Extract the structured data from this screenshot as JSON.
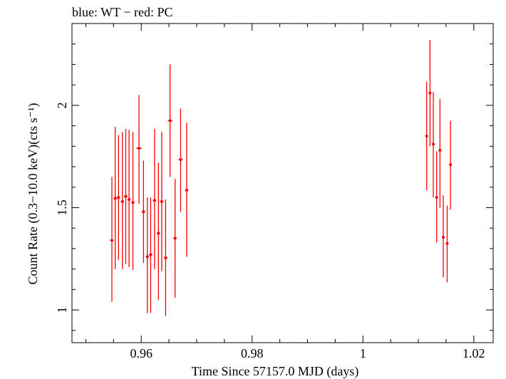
{
  "chart_data": {
    "type": "scatter",
    "title": "blue: WT − red: PC",
    "xlabel": "Time Since 57157.0 MJD (days)",
    "ylabel": "Count Rate (0.3−10.0 keV)(cts s⁻¹)",
    "xlim": [
      0.9475,
      1.0235
    ],
    "ylim": [
      0.84,
      2.4
    ],
    "x_ticks": [
      {
        "value": 0.96,
        "label": "0.96"
      },
      {
        "value": 0.98,
        "label": "0.98"
      },
      {
        "value": 1.0,
        "label": "1"
      },
      {
        "value": 1.02,
        "label": "1.02"
      }
    ],
    "y_ticks": [
      {
        "value": 1.0,
        "label": "1"
      },
      {
        "value": 1.5,
        "label": "1.5"
      },
      {
        "value": 2.0,
        "label": "2"
      }
    ],
    "grid": false,
    "series": [
      {
        "name": "PC",
        "color": "#ff0000",
        "points": [
          {
            "x": 0.9547,
            "y": 1.34,
            "ylo": 1.04,
            "yhi": 1.65,
            "xerr": 0.0003
          },
          {
            "x": 0.9553,
            "y": 1.545,
            "ylo": 1.2,
            "yhi": 1.895,
            "xerr": 0.0003
          },
          {
            "x": 0.9559,
            "y": 1.55,
            "ylo": 1.245,
            "yhi": 1.855,
            "xerr": 0.0003
          },
          {
            "x": 0.9566,
            "y": 1.53,
            "ylo": 1.2,
            "yhi": 1.87,
            "xerr": 0.0003
          },
          {
            "x": 0.9572,
            "y": 1.555,
            "ylo": 1.225,
            "yhi": 1.885,
            "xerr": 0.0003
          },
          {
            "x": 0.9578,
            "y": 1.54,
            "ylo": 1.21,
            "yhi": 1.88,
            "xerr": 0.0003
          },
          {
            "x": 0.9585,
            "y": 1.525,
            "ylo": 1.195,
            "yhi": 1.87,
            "xerr": 0.0003
          },
          {
            "x": 0.9596,
            "y": 1.79,
            "ylo": 1.52,
            "yhi": 2.05,
            "xerr": 0.0005
          },
          {
            "x": 0.9604,
            "y": 1.48,
            "ylo": 1.23,
            "yhi": 1.73,
            "xerr": 0.0003
          },
          {
            "x": 0.9611,
            "y": 1.26,
            "ylo": 0.985,
            "yhi": 1.55,
            "xerr": 0.0003
          },
          {
            "x": 0.9617,
            "y": 1.27,
            "ylo": 0.985,
            "yhi": 1.55,
            "xerr": 0.0003
          },
          {
            "x": 0.9624,
            "y": 1.535,
            "ylo": 1.2,
            "yhi": 1.885,
            "xerr": 0.0003
          },
          {
            "x": 0.9631,
            "y": 1.375,
            "ylo": 1.05,
            "yhi": 1.72,
            "xerr": 0.0003
          },
          {
            "x": 0.9637,
            "y": 1.53,
            "ylo": 1.19,
            "yhi": 1.87,
            "xerr": 0.0003
          },
          {
            "x": 0.9644,
            "y": 1.255,
            "ylo": 0.97,
            "yhi": 1.54,
            "xerr": 0.0003
          },
          {
            "x": 0.9652,
            "y": 1.925,
            "ylo": 1.65,
            "yhi": 2.2,
            "xerr": 0.0004
          },
          {
            "x": 0.9661,
            "y": 1.35,
            "ylo": 1.06,
            "yhi": 1.64,
            "xerr": 0.0003
          },
          {
            "x": 0.9671,
            "y": 1.735,
            "ylo": 1.48,
            "yhi": 1.985,
            "xerr": 0.0004
          },
          {
            "x": 0.9682,
            "y": 1.585,
            "ylo": 1.26,
            "yhi": 1.915,
            "xerr": 0.0003
          },
          {
            "x": 1.0115,
            "y": 1.85,
            "ylo": 1.585,
            "yhi": 2.115,
            "xerr": 0.0002
          },
          {
            "x": 1.0121,
            "y": 2.06,
            "ylo": 1.8,
            "yhi": 2.32,
            "xerr": 0.0002
          },
          {
            "x": 1.0127,
            "y": 1.81,
            "ylo": 1.55,
            "yhi": 2.065,
            "xerr": 0.0002
          },
          {
            "x": 1.0133,
            "y": 1.55,
            "ylo": 1.33,
            "yhi": 1.775,
            "xerr": 0.0002
          },
          {
            "x": 1.0139,
            "y": 1.78,
            "ylo": 1.5,
            "yhi": 2.03,
            "xerr": 0.0002
          },
          {
            "x": 1.0145,
            "y": 1.355,
            "ylo": 1.16,
            "yhi": 1.56,
            "xerr": 0.0002
          },
          {
            "x": 1.0152,
            "y": 1.325,
            "ylo": 1.135,
            "yhi": 1.51,
            "xerr": 0.0002
          },
          {
            "x": 1.0158,
            "y": 1.71,
            "ylo": 1.49,
            "yhi": 1.925,
            "xerr": 0.0002
          }
        ]
      }
    ]
  }
}
